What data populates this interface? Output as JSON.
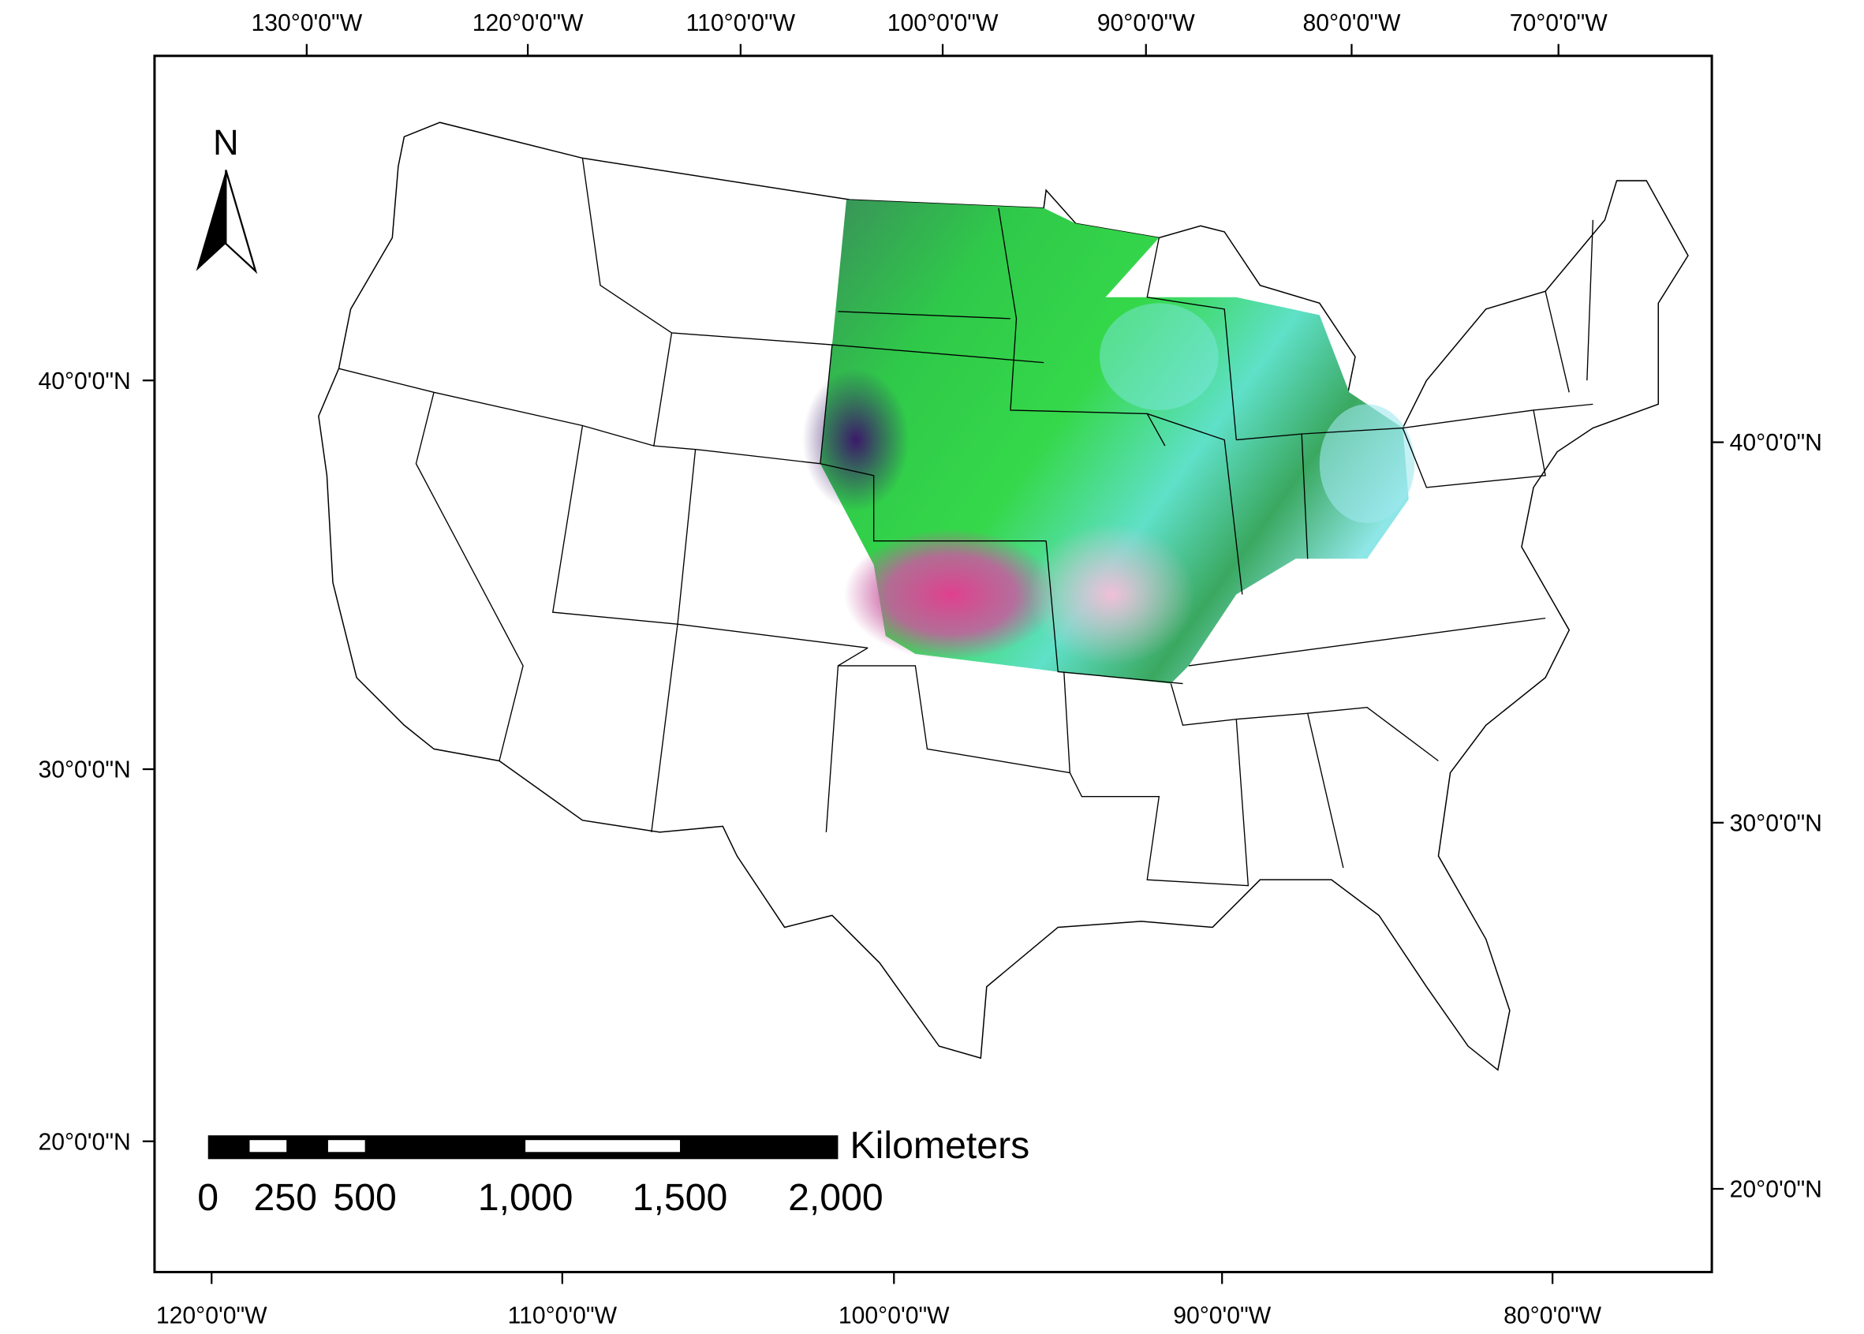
{
  "map": {
    "north_label": "N",
    "top_axis_labels": [
      "130°0'0\"W",
      "120°0'0\"W",
      "110°0'0\"W",
      "100°0'0\"W",
      "90°0'0\"W",
      "80°0'0\"W",
      "70°0'0\"W"
    ],
    "bottom_axis_labels": [
      "120°0'0\"W",
      "110°0'0\"W",
      "100°0'0\"W",
      "90°0'0\"W",
      "80°0'0\"W"
    ],
    "left_axis_labels": [
      "40°0'0\"N",
      "30°0'0\"N",
      "20°0'0\"N"
    ],
    "right_axis_labels": [
      "40°0'0\"N",
      "30°0'0\"N",
      "20°0'0\"N"
    ],
    "scale_bar": {
      "unit": "Kilometers",
      "labels": [
        "0",
        "250",
        "500",
        "1,000",
        "1,500",
        "2,000"
      ]
    }
  }
}
